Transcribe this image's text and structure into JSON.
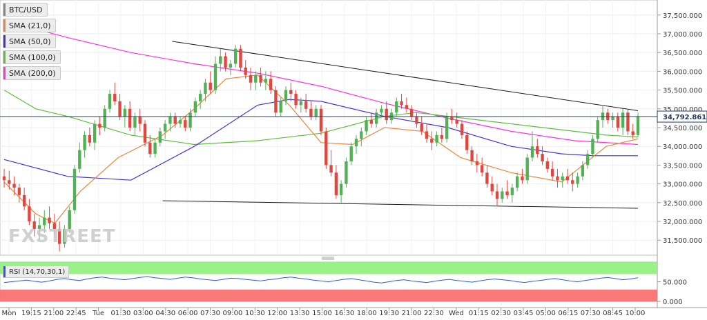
{
  "legend": {
    "symbol": "BTC/USD",
    "sma21": "SMA (21,0)",
    "sma50": "SMA (50,0)",
    "sma100": "SMA (100,0)",
    "sma200": "SMA (200,0)",
    "rsi": "RSI (14,70,30,1)"
  },
  "watermark": "FXSTREET",
  "colors": {
    "up": "#52b154",
    "down": "#e0473f",
    "sma21": "#f0843a",
    "sma50": "#4b2fd6",
    "sma100": "#5cbf3d",
    "sma200": "#ff33dd",
    "trendline": "#1a1a1a",
    "price_line": "#1f3a60",
    "rsi_line": "#2a5cd8",
    "rsi_overbought": "#8ef07a",
    "rsi_oversold": "#f86a6a"
  },
  "chart_data": {
    "type": "candlestick",
    "symbol": "BTC/USD",
    "ylim": [
      31100,
      37900
    ],
    "y_ticks": [
      31500,
      32000,
      32500,
      33000,
      33500,
      34000,
      34500,
      35000,
      35500,
      36000,
      36500,
      37000,
      37500
    ],
    "y_tick_labels": [
      "31,500.000",
      "32,000.000",
      "32,500.000",
      "33,000.000",
      "33,500.000",
      "34,000.000",
      "34,500.000",
      "35,000.000",
      "35,500.000",
      "36,000.000",
      "36,500.000",
      "37,000.000",
      "37,500.000"
    ],
    "current_price": 34792.861,
    "current_price_label": "34,792.861",
    "x_ticks": [
      "Mon",
      "19:15",
      "21:00",
      "22:45",
      "Tue",
      "01:30",
      "03:00",
      "04:30",
      "06:00",
      "07:30",
      "09:00",
      "10:30",
      "12:00",
      "13:30",
      "15:00",
      "16:30",
      "18:00",
      "19:30",
      "21:00",
      "22:30",
      "Wed",
      "01:15",
      "02:30",
      "03:45",
      "05:00",
      "06:15",
      "07:30",
      "08:45",
      "10:00"
    ],
    "candles": [
      [
        33200,
        33400,
        32900,
        33100
      ],
      [
        33100,
        33350,
        32850,
        33000
      ],
      [
        33000,
        33200,
        32700,
        32900
      ],
      [
        32900,
        33000,
        32500,
        32700
      ],
      [
        32700,
        32900,
        32300,
        32400
      ],
      [
        32400,
        32600,
        31900,
        32000
      ],
      [
        32000,
        32200,
        31600,
        31800
      ],
      [
        31800,
        32100,
        31500,
        31900
      ],
      [
        31900,
        32300,
        31700,
        32100
      ],
      [
        32100,
        32400,
        31800,
        31950
      ],
      [
        31950,
        32200,
        31650,
        31800
      ],
      [
        31800,
        32000,
        31200,
        31400
      ],
      [
        31400,
        31900,
        31300,
        31800
      ],
      [
        31800,
        32400,
        31700,
        32300
      ],
      [
        32300,
        33500,
        32200,
        33400
      ],
      [
        33400,
        34100,
        33300,
        33900
      ],
      [
        33900,
        34400,
        33700,
        34300
      ],
      [
        34300,
        34500,
        34000,
        34100
      ],
      [
        34100,
        34700,
        33900,
        34600
      ],
      [
        34600,
        34800,
        34300,
        34500
      ],
      [
        34500,
        35100,
        34400,
        35000
      ],
      [
        35000,
        35500,
        34900,
        35400
      ],
      [
        35400,
        35700,
        35100,
        35200
      ],
      [
        35200,
        35400,
        34700,
        34800
      ],
      [
        34800,
        35100,
        34500,
        35000
      ],
      [
        35000,
        35200,
        34400,
        34500
      ],
      [
        34500,
        34900,
        34300,
        34800
      ],
      [
        34800,
        35000,
        34400,
        34600
      ],
      [
        34600,
        34700,
        34000,
        34100
      ],
      [
        34100,
        34300,
        33700,
        33800
      ],
      [
        33800,
        34200,
        33700,
        34100
      ],
      [
        34100,
        34500,
        34000,
        34400
      ],
      [
        34400,
        34700,
        34200,
        34600
      ],
      [
        34600,
        34900,
        34400,
        34800
      ],
      [
        34800,
        34900,
        34500,
        34600
      ],
      [
        34600,
        34800,
        34500,
        34700
      ],
      [
        34700,
        34800,
        34400,
        34500
      ],
      [
        34500,
        35000,
        34400,
        34900
      ],
      [
        34900,
        35300,
        34800,
        35200
      ],
      [
        35200,
        35500,
        35000,
        35400
      ],
      [
        35400,
        35800,
        35200,
        35700
      ],
      [
        35700,
        36000,
        35400,
        35500
      ],
      [
        35500,
        36400,
        35400,
        36200
      ],
      [
        36200,
        36600,
        36000,
        36400
      ],
      [
        36400,
        36500,
        36000,
        36100
      ],
      [
        36100,
        36300,
        35900,
        36200
      ],
      [
        36200,
        36700,
        36100,
        36600
      ],
      [
        36600,
        36700,
        36000,
        36100
      ],
      [
        36100,
        36300,
        35800,
        35900
      ],
      [
        35900,
        36100,
        35500,
        35700
      ],
      [
        35700,
        36000,
        35500,
        35900
      ],
      [
        35900,
        36100,
        35600,
        35700
      ],
      [
        35700,
        36000,
        35500,
        35800
      ],
      [
        35800,
        36000,
        35400,
        35500
      ],
      [
        35500,
        35600,
        34800,
        34900
      ],
      [
        34900,
        35300,
        34800,
        35200
      ],
      [
        35200,
        35600,
        35100,
        35500
      ],
      [
        35500,
        35700,
        35200,
        35400
      ],
      [
        35400,
        35500,
        35000,
        35100
      ],
      [
        35100,
        35300,
        34900,
        35200
      ],
      [
        35200,
        35400,
        34900,
        35000
      ],
      [
        35000,
        35200,
        34700,
        34800
      ],
      [
        34800,
        35100,
        34700,
        35000
      ],
      [
        35000,
        35100,
        34300,
        34400
      ],
      [
        34400,
        34500,
        33400,
        33500
      ],
      [
        33500,
        33900,
        33200,
        33300
      ],
      [
        33300,
        33500,
        32600,
        32700
      ],
      [
        32700,
        33100,
        32500,
        33000
      ],
      [
        33000,
        33700,
        32900,
        33600
      ],
      [
        33600,
        34100,
        33500,
        34000
      ],
      [
        34000,
        34300,
        33800,
        34200
      ],
      [
        34200,
        34500,
        34000,
        34400
      ],
      [
        34400,
        34800,
        34300,
        34700
      ],
      [
        34700,
        34900,
        34500,
        34600
      ],
      [
        34600,
        35000,
        34500,
        34900
      ],
      [
        34900,
        35100,
        34800,
        35000
      ],
      [
        35000,
        35200,
        34600,
        34700
      ],
      [
        34700,
        35000,
        34600,
        34900
      ],
      [
        34900,
        35300,
        34800,
        35200
      ],
      [
        35200,
        35400,
        35000,
        35100
      ],
      [
        35100,
        35300,
        34900,
        35000
      ],
      [
        35000,
        35100,
        34700,
        34800
      ],
      [
        34800,
        34900,
        34500,
        34600
      ],
      [
        34600,
        34800,
        34300,
        34400
      ],
      [
        34400,
        34600,
        34100,
        34200
      ],
      [
        34200,
        34400,
        33900,
        34100
      ],
      [
        34100,
        34400,
        34000,
        34300
      ],
      [
        34300,
        34500,
        34100,
        34200
      ],
      [
        34200,
        34900,
        34100,
        34800
      ],
      [
        34800,
        35000,
        34600,
        34700
      ],
      [
        34700,
        34900,
        34500,
        34600
      ],
      [
        34600,
        34700,
        34200,
        34300
      ],
      [
        34300,
        34400,
        33800,
        33900
      ],
      [
        33900,
        34000,
        33500,
        33600
      ],
      [
        33600,
        33800,
        33300,
        33500
      ],
      [
        33500,
        33700,
        33200,
        33300
      ],
      [
        33300,
        33500,
        32900,
        33000
      ],
      [
        33000,
        33200,
        32700,
        32800
      ],
      [
        32800,
        33000,
        32400,
        32600
      ],
      [
        32600,
        32900,
        32500,
        32800
      ],
      [
        32800,
        33100,
        32600,
        32700
      ],
      [
        32700,
        33000,
        32500,
        32900
      ],
      [
        32900,
        33300,
        32800,
        33200
      ],
      [
        33200,
        33400,
        33000,
        33100
      ],
      [
        33100,
        33800,
        33000,
        33700
      ],
      [
        33700,
        34400,
        33600,
        34000
      ],
      [
        34000,
        34200,
        33700,
        33800
      ],
      [
        33800,
        34000,
        33500,
        33600
      ],
      [
        33600,
        33700,
        33300,
        33400
      ],
      [
        33400,
        33600,
        33100,
        33200
      ],
      [
        33200,
        33400,
        32900,
        33100
      ],
      [
        33100,
        33300,
        32900,
        33200
      ],
      [
        33200,
        33400,
        33000,
        33100
      ],
      [
        33100,
        33300,
        32800,
        33000
      ],
      [
        33000,
        33300,
        32900,
        33200
      ],
      [
        33200,
        33600,
        33100,
        33500
      ],
      [
        33500,
        33900,
        33400,
        33800
      ],
      [
        33800,
        34300,
        33700,
        34200
      ],
      [
        34200,
        34800,
        34100,
        34700
      ],
      [
        34700,
        35100,
        34500,
        34900
      ],
      [
        34900,
        35000,
        34600,
        34700
      ],
      [
        34700,
        34900,
        34500,
        34800
      ],
      [
        34800,
        34900,
        34400,
        34500
      ],
      [
        34500,
        35000,
        34300,
        34900
      ],
      [
        34900,
        35000,
        34300,
        34400
      ],
      [
        34400,
        34600,
        34200,
        34300
      ],
      [
        34300,
        34900,
        34250,
        34800
      ]
    ],
    "sma200": [
      [
        0,
        37350
      ],
      [
        0.1,
        36900
      ],
      [
        0.2,
        36500
      ],
      [
        0.3,
        36200
      ],
      [
        0.4,
        35950
      ],
      [
        0.5,
        35600
      ],
      [
        0.6,
        35150
      ],
      [
        0.7,
        34750
      ],
      [
        0.8,
        34400
      ],
      [
        0.9,
        34150
      ],
      [
        1,
        34050
      ]
    ],
    "sma100": [
      [
        0,
        35500
      ],
      [
        0.05,
        35000
      ],
      [
        0.1,
        34800
      ],
      [
        0.2,
        34300
      ],
      [
        0.3,
        34050
      ],
      [
        0.4,
        34150
      ],
      [
        0.5,
        34350
      ],
      [
        0.6,
        34800
      ],
      [
        0.65,
        34900
      ],
      [
        0.75,
        34700
      ],
      [
        0.85,
        34500
      ],
      [
        0.95,
        34300
      ],
      [
        1,
        34250
      ]
    ],
    "sma50": [
      [
        0,
        33650
      ],
      [
        0.1,
        33200
      ],
      [
        0.2,
        33100
      ],
      [
        0.3,
        34000
      ],
      [
        0.4,
        35100
      ],
      [
        0.45,
        35250
      ],
      [
        0.5,
        35200
      ],
      [
        0.6,
        34800
      ],
      [
        0.7,
        34500
      ],
      [
        0.8,
        34000
      ],
      [
        0.88,
        33800
      ],
      [
        0.93,
        33750
      ],
      [
        1,
        33750
      ]
    ],
    "sma21": [
      [
        0,
        33050
      ],
      [
        0.05,
        32200
      ],
      [
        0.08,
        31950
      ],
      [
        0.12,
        32800
      ],
      [
        0.18,
        33700
      ],
      [
        0.25,
        34300
      ],
      [
        0.3,
        35000
      ],
      [
        0.35,
        35800
      ],
      [
        0.4,
        35900
      ],
      [
        0.45,
        35100
      ],
      [
        0.5,
        34100
      ],
      [
        0.55,
        34050
      ],
      [
        0.6,
        34500
      ],
      [
        0.66,
        34400
      ],
      [
        0.72,
        33700
      ],
      [
        0.8,
        33300
      ],
      [
        0.88,
        33050
      ],
      [
        0.95,
        34000
      ],
      [
        1,
        34200
      ]
    ],
    "upper_trendline": [
      [
        0.265,
        36800
      ],
      [
        1,
        34950
      ]
    ],
    "lower_trendline": [
      [
        0.25,
        32550
      ],
      [
        1,
        32350
      ]
    ],
    "rsi": {
      "ylim": [
        0,
        100
      ],
      "ticks": [
        0,
        50
      ],
      "tick_labels": [
        "0.000",
        "50.000"
      ],
      "overbought": 70,
      "oversold": 30,
      "values": [
        48,
        50,
        52,
        54,
        51,
        49,
        52,
        56,
        58,
        55,
        53,
        57,
        60,
        62,
        59,
        57,
        55,
        58,
        61,
        63,
        60,
        58,
        56,
        59,
        62,
        60,
        57,
        55,
        53,
        56,
        59,
        58,
        56,
        54,
        52,
        55,
        57,
        60,
        62,
        59,
        57,
        54,
        52,
        50,
        53,
        56,
        58,
        55,
        52,
        49,
        47,
        50,
        53,
        55,
        52,
        50,
        48,
        51,
        54,
        56,
        53,
        51,
        49,
        52,
        55,
        57,
        55,
        53,
        50,
        48,
        51,
        53,
        56,
        58,
        55,
        52,
        50,
        53,
        56,
        59,
        61,
        58,
        55,
        57,
        60
      ]
    }
  }
}
